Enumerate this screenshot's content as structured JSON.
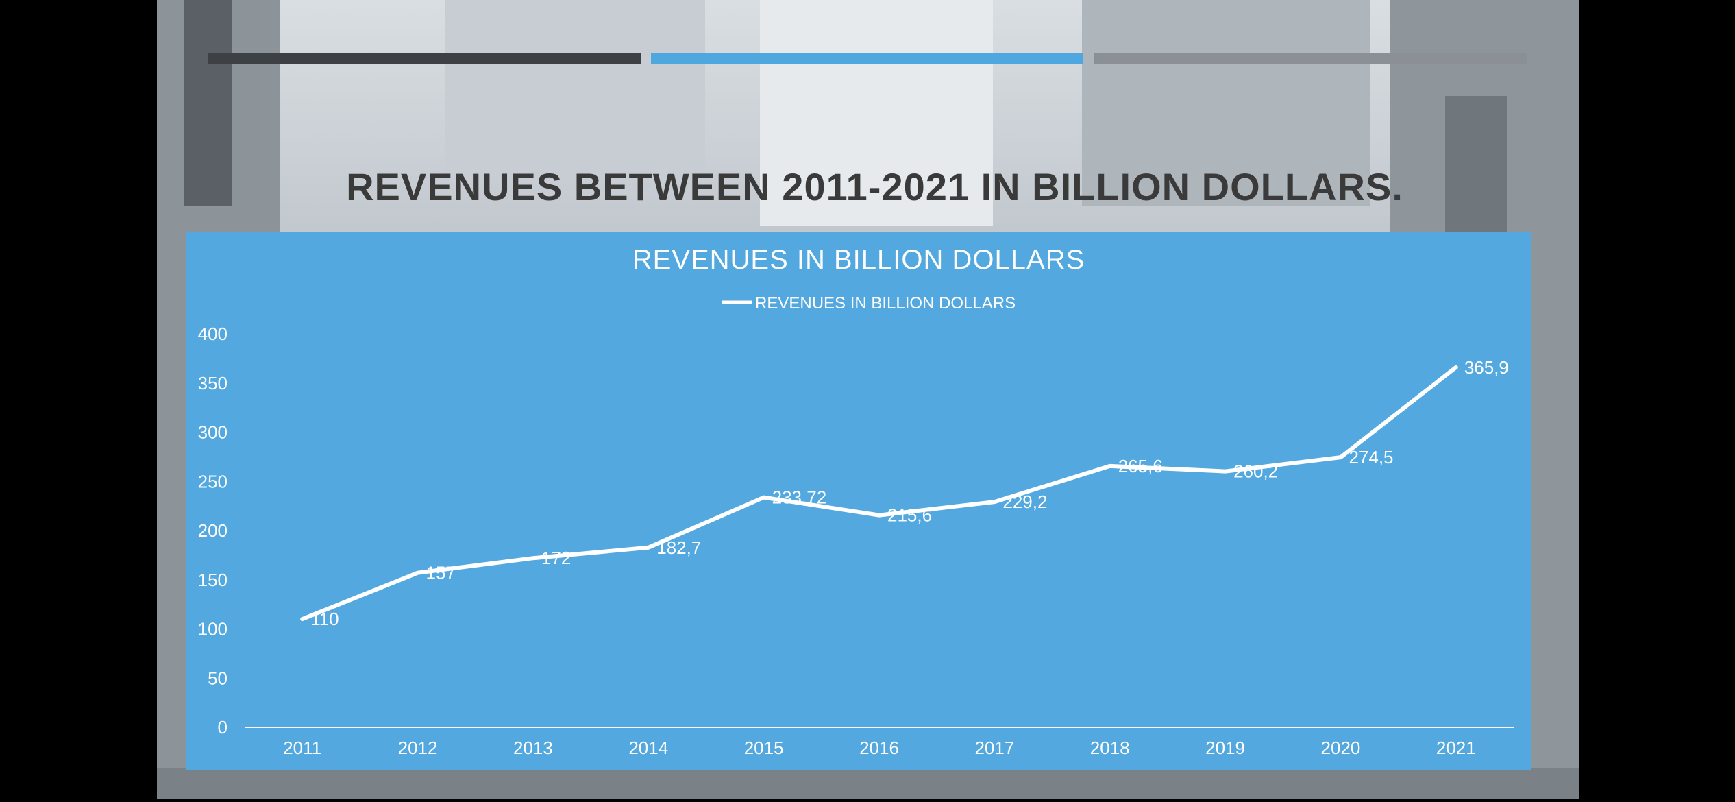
{
  "page": {
    "title": "REVENUES BETWEEN 2011-2021 IN BILLION DOLLARS.",
    "accent_bars": [
      "#3d4145",
      "#4ea8df",
      "#8a9096"
    ],
    "bg_color": "#000000"
  },
  "chart_data": {
    "type": "line",
    "title": "REVENUES IN BILLION DOLLARS",
    "legend": "top",
    "x": [
      "2011",
      "2012",
      "2013",
      "2014",
      "2015",
      "2016",
      "2017",
      "2018",
      "2019",
      "2020",
      "2021"
    ],
    "series": [
      {
        "name": "REVENUES IN BILLION DOLLARS",
        "values": [
          110,
          157,
          172,
          182.7,
          233.72,
          215.6,
          229.2,
          265.6,
          260.2,
          274.5,
          365.9
        ],
        "labels": [
          "110",
          "157",
          "172",
          "182,7",
          "233,72",
          "215,6",
          "229,2",
          "265,6",
          "260,2",
          "274,5",
          "365,9"
        ],
        "color": "#ffffff"
      }
    ],
    "yticks": [
      "0",
      "50",
      "100",
      "150",
      "200",
      "250",
      "300",
      "350",
      "400"
    ],
    "ylim": [
      0,
      400
    ],
    "grid": false,
    "panel_color": "#52a8df"
  }
}
